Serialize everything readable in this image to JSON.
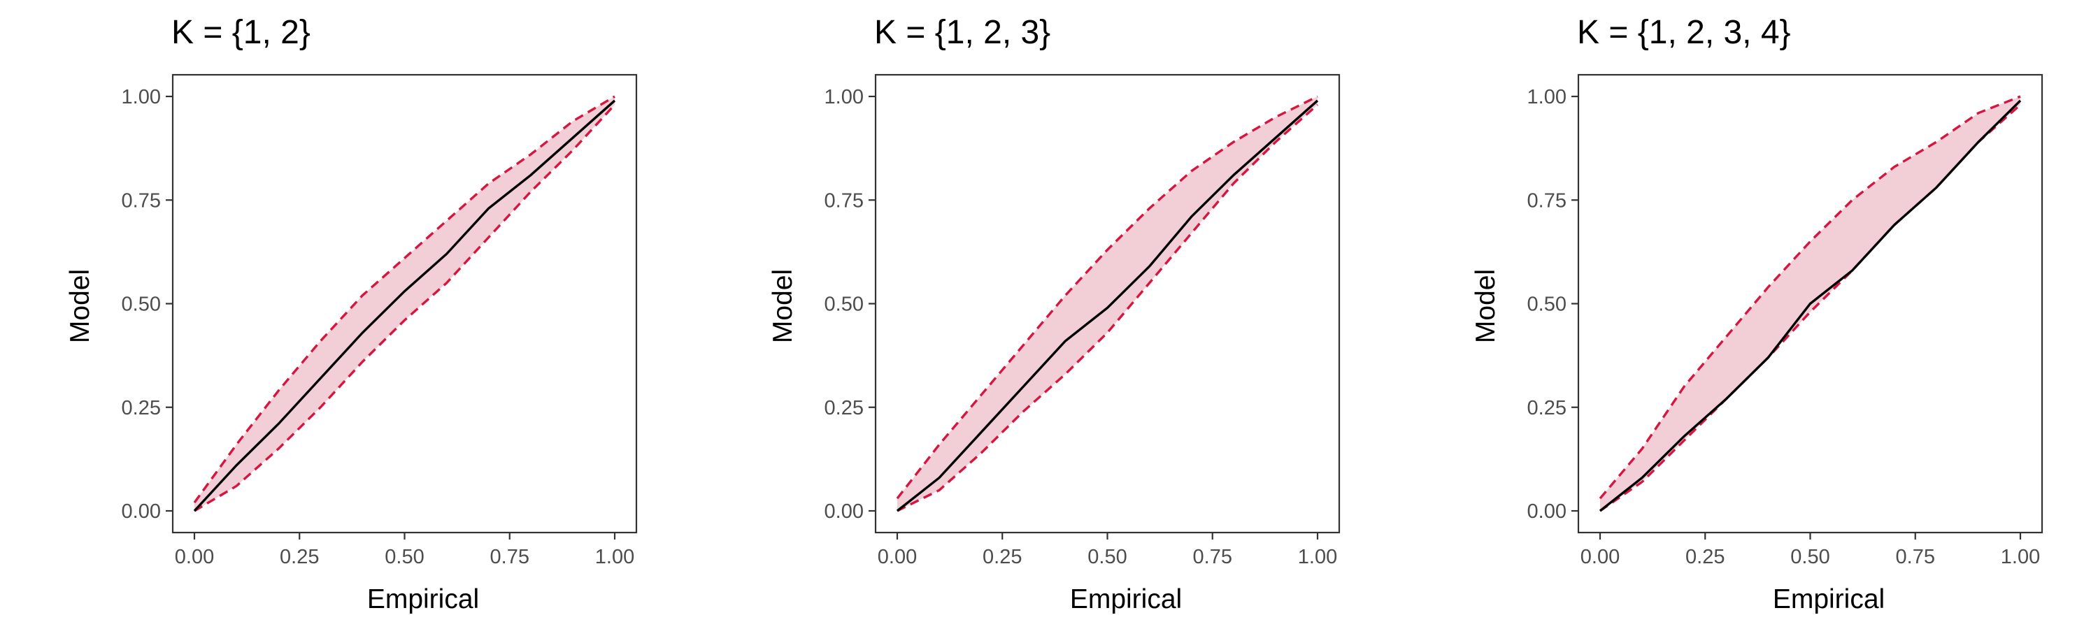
{
  "colors": {
    "band_fill": "#f2cfd6",
    "bound_line": "#d6163f",
    "estimate_line": "#000000",
    "frame": "#333333",
    "tick_text": "#4d4d4d"
  },
  "chart_data": [
    {
      "type": "line",
      "title": "K = {1, 2}",
      "xlabel": "Empirical",
      "ylabel": "Model",
      "xlim": [
        0,
        1
      ],
      "ylim": [
        0,
        1
      ],
      "xticks": [
        "0.00",
        "0.25",
        "0.50",
        "0.75",
        "1.00"
      ],
      "yticks": [
        "0.00",
        "0.25",
        "0.50",
        "0.75",
        "1.00"
      ],
      "grid": false,
      "x": [
        0.0,
        0.1,
        0.2,
        0.3,
        0.4,
        0.5,
        0.6,
        0.7,
        0.8,
        0.9,
        1.0
      ],
      "series": [
        {
          "role": "upper",
          "style": "dashed",
          "values": [
            0.02,
            0.16,
            0.29,
            0.41,
            0.52,
            0.61,
            0.7,
            0.79,
            0.86,
            0.94,
            1.0
          ]
        },
        {
          "role": "estimate",
          "style": "solid",
          "values": [
            0.0,
            0.11,
            0.21,
            0.32,
            0.43,
            0.53,
            0.62,
            0.73,
            0.81,
            0.9,
            0.99
          ]
        },
        {
          "role": "lower",
          "style": "dashed",
          "values": [
            0.0,
            0.06,
            0.15,
            0.25,
            0.36,
            0.46,
            0.55,
            0.66,
            0.77,
            0.87,
            0.98
          ]
        }
      ]
    },
    {
      "type": "line",
      "title": "K = {1, 2, 3}",
      "xlabel": "Empirical",
      "ylabel": "Model",
      "xlim": [
        0,
        1
      ],
      "ylim": [
        0,
        1
      ],
      "xticks": [
        "0.00",
        "0.25",
        "0.50",
        "0.75",
        "1.00"
      ],
      "yticks": [
        "0.00",
        "0.25",
        "0.50",
        "0.75",
        "1.00"
      ],
      "grid": false,
      "x": [
        0.0,
        0.1,
        0.2,
        0.3,
        0.4,
        0.5,
        0.6,
        0.7,
        0.8,
        0.9,
        1.0
      ],
      "series": [
        {
          "role": "upper",
          "style": "dashed",
          "values": [
            0.03,
            0.16,
            0.28,
            0.4,
            0.52,
            0.63,
            0.73,
            0.82,
            0.89,
            0.95,
            1.0
          ]
        },
        {
          "role": "estimate",
          "style": "solid",
          "values": [
            0.0,
            0.08,
            0.19,
            0.3,
            0.41,
            0.49,
            0.59,
            0.71,
            0.81,
            0.9,
            0.99
          ]
        },
        {
          "role": "lower",
          "style": "dashed",
          "values": [
            0.0,
            0.05,
            0.14,
            0.24,
            0.33,
            0.43,
            0.55,
            0.67,
            0.79,
            0.89,
            0.98
          ]
        }
      ]
    },
    {
      "type": "line",
      "title": "K = {1, 2, 3, 4}",
      "xlabel": "Empirical",
      "ylabel": "Model",
      "xlim": [
        0,
        1
      ],
      "ylim": [
        0,
        1
      ],
      "xticks": [
        "0.00",
        "0.25",
        "0.50",
        "0.75",
        "1.00"
      ],
      "yticks": [
        "0.00",
        "0.25",
        "0.50",
        "0.75",
        "1.00"
      ],
      "grid": false,
      "x": [
        0.0,
        0.1,
        0.2,
        0.3,
        0.4,
        0.5,
        0.6,
        0.7,
        0.8,
        0.9,
        1.0
      ],
      "series": [
        {
          "role": "upper",
          "style": "dashed",
          "values": [
            0.03,
            0.15,
            0.3,
            0.42,
            0.54,
            0.65,
            0.75,
            0.83,
            0.89,
            0.96,
            1.0
          ]
        },
        {
          "role": "estimate",
          "style": "solid",
          "values": [
            0.0,
            0.08,
            0.18,
            0.27,
            0.37,
            0.5,
            0.58,
            0.69,
            0.78,
            0.89,
            0.99
          ]
        },
        {
          "role": "lower",
          "style": "dashed",
          "values": [
            0.0,
            0.07,
            0.17,
            0.27,
            0.37,
            0.48,
            0.58,
            0.69,
            0.78,
            0.89,
            0.98
          ]
        }
      ]
    }
  ]
}
